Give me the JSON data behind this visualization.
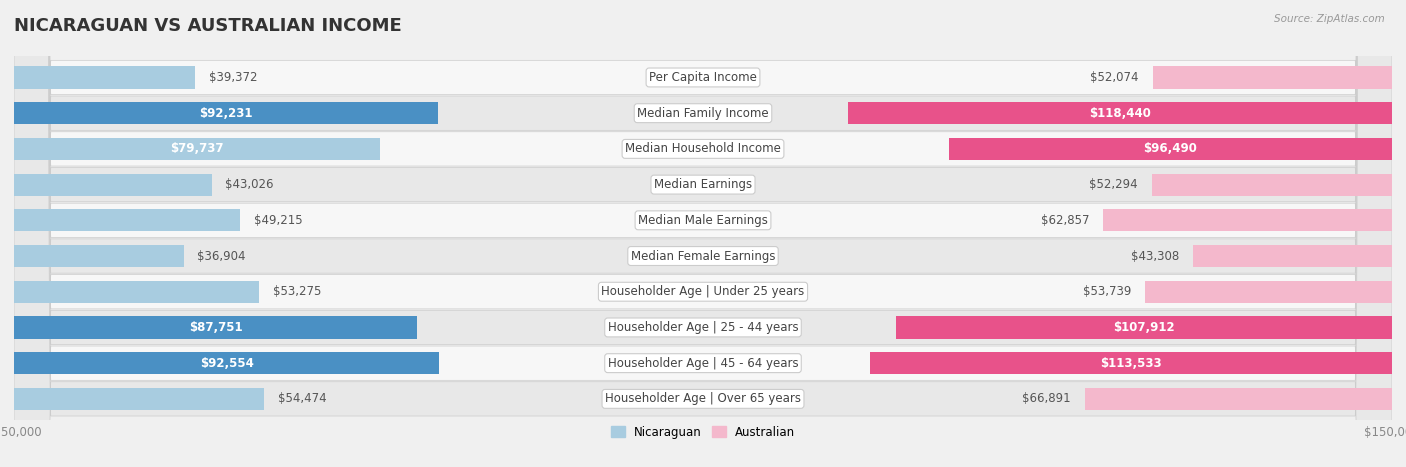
{
  "title": "NICARAGUAN VS AUSTRALIAN INCOME",
  "source": "Source: ZipAtlas.com",
  "categories": [
    "Per Capita Income",
    "Median Family Income",
    "Median Household Income",
    "Median Earnings",
    "Median Male Earnings",
    "Median Female Earnings",
    "Householder Age | Under 25 years",
    "Householder Age | 25 - 44 years",
    "Householder Age | 45 - 64 years",
    "Householder Age | Over 65 years"
  ],
  "nicaraguan_values": [
    39372,
    92231,
    79737,
    43026,
    49215,
    36904,
    53275,
    87751,
    92554,
    54474
  ],
  "australian_values": [
    52074,
    118440,
    96490,
    52294,
    62857,
    43308,
    53739,
    107912,
    113533,
    66891
  ],
  "nicaraguan_labels": [
    "$39,372",
    "$92,231",
    "$79,737",
    "$43,026",
    "$49,215",
    "$36,904",
    "$53,275",
    "$87,751",
    "$92,554",
    "$54,474"
  ],
  "australian_labels": [
    "$52,074",
    "$118,440",
    "$96,490",
    "$52,294",
    "$62,857",
    "$43,308",
    "$53,739",
    "$107,912",
    "$113,533",
    "$66,891"
  ],
  "nic_label_inside": [
    false,
    true,
    true,
    false,
    false,
    false,
    false,
    true,
    true,
    false
  ],
  "aus_label_inside": [
    false,
    true,
    true,
    false,
    false,
    false,
    false,
    true,
    true,
    false
  ],
  "nicaraguan_color_light": "#a8cce0",
  "nicaraguan_color_dark": "#4a90c4",
  "australian_color_light": "#f4b8cc",
  "australian_color_dark": "#e8528a",
  "nic_dark": [
    false,
    true,
    false,
    false,
    false,
    false,
    false,
    true,
    true,
    false
  ],
  "aus_dark": [
    false,
    true,
    true,
    false,
    false,
    false,
    false,
    true,
    true,
    false
  ],
  "max_val": 150000,
  "legend_nicaraguan": "Nicaraguan",
  "legend_australian": "Australian",
  "background_color": "#f0f0f0",
  "row_bg_even": "#f7f7f7",
  "row_bg_odd": "#e8e8e8",
  "title_fontsize": 13,
  "label_fontsize": 8.5,
  "category_fontsize": 8.5
}
